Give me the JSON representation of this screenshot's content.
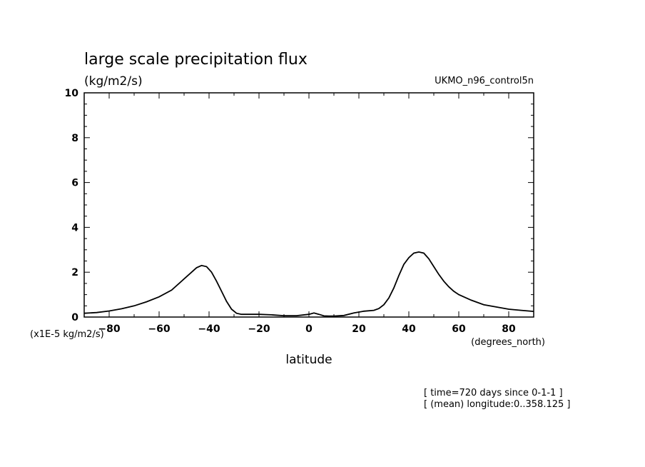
{
  "chart_data": {
    "type": "line",
    "title": "large scale precipitation flux",
    "units": "(kg/m2/s)",
    "model": "UKMO_n96_control5n",
    "xlabel": "latitude",
    "x_units": "(degrees_north)",
    "y_scale_label": "(x1E-5 kg/m2/s)",
    "xlim": [
      -90,
      90
    ],
    "ylim": [
      0,
      10
    ],
    "x_ticks": [
      -80,
      -60,
      -40,
      -20,
      0,
      20,
      40,
      60,
      80
    ],
    "y_ticks": [
      0,
      2,
      4,
      6,
      8,
      10
    ],
    "grid": false,
    "info": [
      "[ time=720 days since 0-1-1 ]",
      "[ (mean) longitude:0..358.125 ]"
    ],
    "series": [
      {
        "x": [
          -90,
          -85,
          -80,
          -75,
          -70,
          -65,
          -60,
          -55,
          -50,
          -47,
          -45,
          -43,
          -41,
          -39,
          -37,
          -35,
          -33,
          -31,
          -29,
          -27,
          -25,
          -20,
          -15,
          -10,
          -5,
          0,
          2,
          4,
          6,
          8,
          10,
          14,
          18,
          22,
          26,
          28,
          30,
          32,
          34,
          36,
          38,
          40,
          42,
          44,
          46,
          48,
          50,
          52,
          54,
          56,
          58,
          60,
          65,
          70,
          75,
          80,
          85,
          90
        ],
        "y": [
          0.17,
          0.2,
          0.27,
          0.37,
          0.5,
          0.68,
          0.9,
          1.2,
          1.7,
          2.0,
          2.2,
          2.3,
          2.25,
          2.0,
          1.6,
          1.15,
          0.7,
          0.35,
          0.17,
          0.12,
          0.12,
          0.12,
          0.1,
          0.06,
          0.06,
          0.12,
          0.18,
          0.12,
          0.05,
          0.04,
          0.04,
          0.07,
          0.18,
          0.26,
          0.3,
          0.38,
          0.55,
          0.85,
          1.3,
          1.85,
          2.35,
          2.65,
          2.85,
          2.9,
          2.85,
          2.6,
          2.25,
          1.9,
          1.6,
          1.35,
          1.15,
          1.0,
          0.75,
          0.55,
          0.45,
          0.35,
          0.3,
          0.25
        ]
      }
    ]
  }
}
